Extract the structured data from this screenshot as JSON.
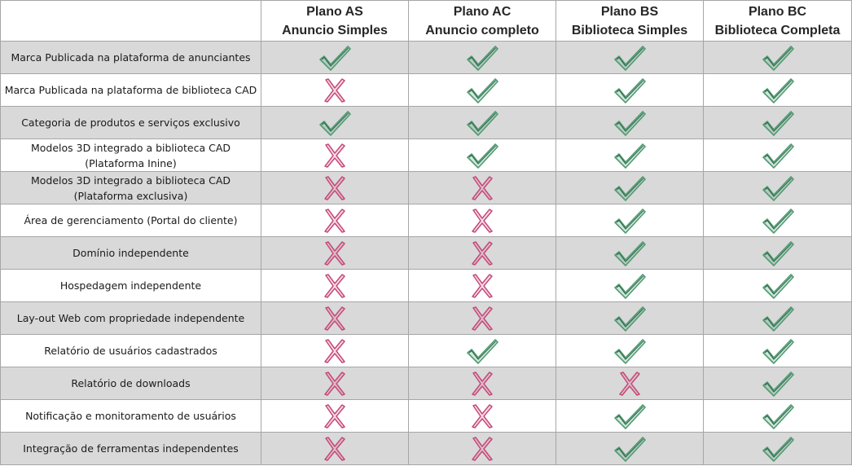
{
  "header": {
    "plans": [
      {
        "name": "Plano AS",
        "subtitle": "Anuncio Simples"
      },
      {
        "name": "Plano AC",
        "subtitle": "Anuncio completo"
      },
      {
        "name": "Plano BS",
        "subtitle": "Biblioteca Simples"
      },
      {
        "name": "Plano BC",
        "subtitle": "Biblioteca Completa"
      }
    ]
  },
  "colors": {
    "check": "#4f9a72",
    "cross": "#c7487a",
    "shaded_row": "#d9d9d9",
    "border": "#a6a6a6"
  },
  "rows": [
    {
      "lines": [
        "Marca Publicada na plataforma de anunciantes"
      ],
      "marks": [
        "check-icon",
        "check-icon",
        "check-icon",
        "check-icon"
      ]
    },
    {
      "lines": [
        "Marca Publicada na plataforma  de biblioteca CAD"
      ],
      "marks": [
        "cross-icon",
        "check-icon",
        "check-icon",
        "check-icon"
      ]
    },
    {
      "lines": [
        "Categoria de produtos e serviços exclusivo"
      ],
      "marks": [
        "check-icon",
        "check-icon",
        "check-icon",
        "check-icon"
      ]
    },
    {
      "lines": [
        "Modelos 3D integrado a biblioteca CAD",
        "(Plataforma Inine)"
      ],
      "marks": [
        "cross-icon",
        "check-icon",
        "check-icon",
        "check-icon"
      ]
    },
    {
      "lines": [
        "Modelos 3D integrado a biblioteca CAD",
        "(Plataforma exclusiva)"
      ],
      "marks": [
        "cross-icon",
        "cross-icon",
        "check-icon",
        "check-icon"
      ]
    },
    {
      "lines": [
        "Área de gerenciamento (Portal do cliente)"
      ],
      "marks": [
        "cross-icon",
        "cross-icon",
        "check-icon",
        "check-icon"
      ]
    },
    {
      "lines": [
        "Domínio independente"
      ],
      "marks": [
        "cross-icon",
        "cross-icon",
        "check-icon",
        "check-icon"
      ]
    },
    {
      "lines": [
        "Hospedagem independente"
      ],
      "marks": [
        "cross-icon",
        "cross-icon",
        "check-icon",
        "check-icon"
      ]
    },
    {
      "lines": [
        "Lay-out Web com propriedade independente"
      ],
      "marks": [
        "cross-icon",
        "cross-icon",
        "check-icon",
        "check-icon"
      ]
    },
    {
      "lines": [
        "Relatório de usuários cadastrados"
      ],
      "marks": [
        "cross-icon",
        "check-icon",
        "check-icon",
        "check-icon"
      ]
    },
    {
      "lines": [
        "Relatório de downloads"
      ],
      "marks": [
        "cross-icon",
        "cross-icon",
        "cross-icon",
        "check-icon"
      ]
    },
    {
      "lines": [
        "Notificação e monitoramento de usuários"
      ],
      "marks": [
        "cross-icon",
        "cross-icon",
        "check-icon",
        "check-icon"
      ]
    },
    {
      "lines": [
        "Integração de ferramentas independentes"
      ],
      "marks": [
        "cross-icon",
        "cross-icon",
        "check-icon",
        "check-icon"
      ]
    }
  ]
}
